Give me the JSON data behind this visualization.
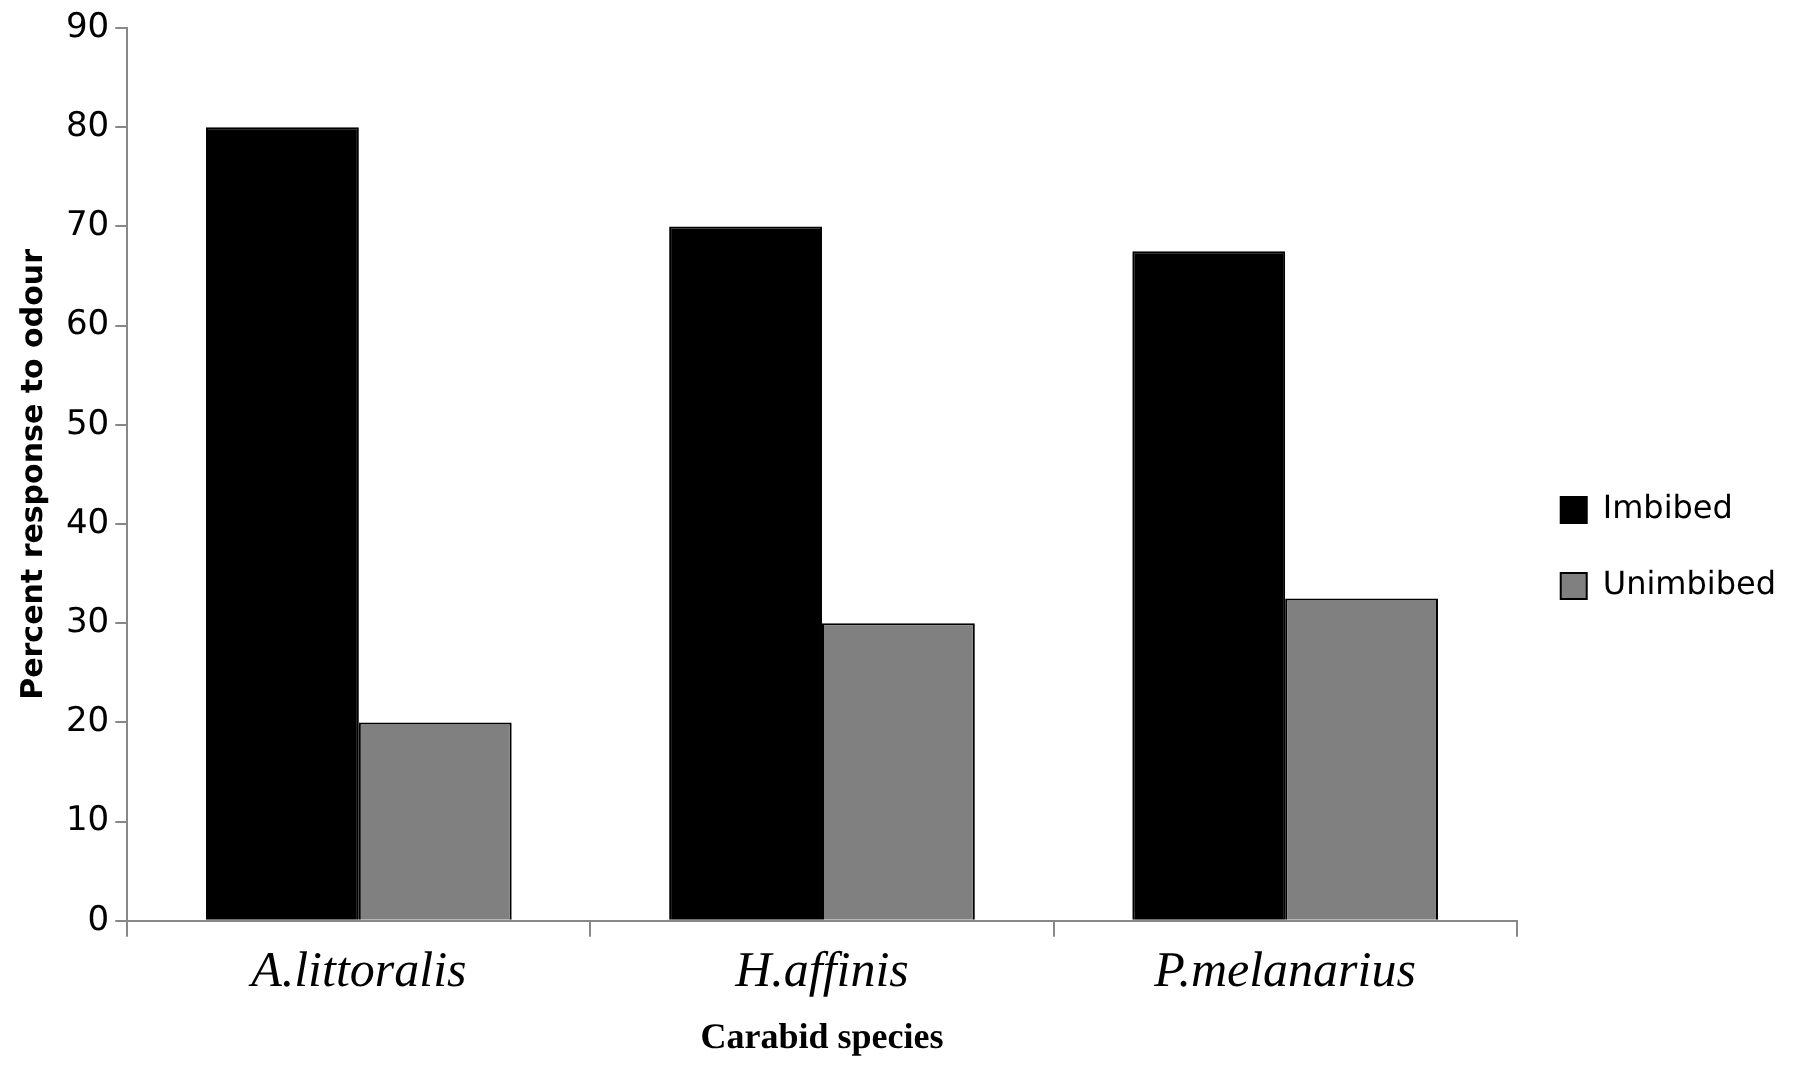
{
  "chart_data": {
    "type": "bar",
    "xlabel": "Carabid species",
    "ylabel": "Percent response to odour",
    "categories": [
      "A.littoralis",
      "H.affinis",
      "P.melanarius"
    ],
    "series": [
      {
        "name": "Imbibed",
        "color": "#000000",
        "values": [
          80,
          70,
          67.5
        ]
      },
      {
        "name": "Unimbibed",
        "color": "#808080",
        "values": [
          20,
          30,
          32.5
        ]
      }
    ],
    "ylim": [
      0,
      90
    ],
    "yticks": [
      0,
      10,
      20,
      30,
      40,
      50,
      60,
      70,
      80,
      90
    ],
    "grid": false,
    "legend": "right"
  }
}
